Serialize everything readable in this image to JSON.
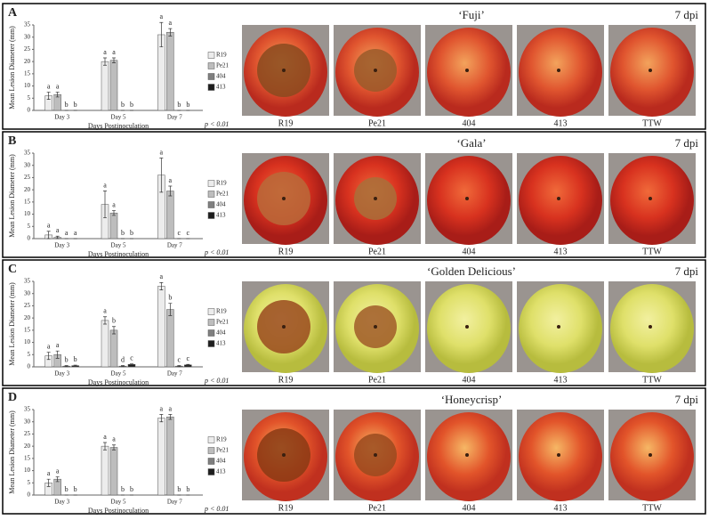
{
  "chart_data": [
    {
      "type": "bar",
      "panel": "A",
      "title": "‘Fuji’",
      "dpi": "7 dpi",
      "note": "p < 0.01",
      "ylabel": "Mean Lesion Diameter (mm)",
      "xlabel": "Days Postinoculation",
      "categories": [
        "Day 3",
        "Day 5",
        "Day 7"
      ],
      "ylim": [
        0,
        35
      ],
      "yticks": [
        0,
        5,
        10,
        15,
        20,
        25,
        30,
        35
      ],
      "photos": [
        "R19",
        "Pe21",
        "404",
        "413",
        "TTW"
      ],
      "series": [
        {
          "name": "R19",
          "color": "#ececec",
          "values": [
            6,
            20,
            31
          ],
          "errors": [
            1.5,
            1.5,
            5
          ],
          "letters": [
            "a",
            "a",
            "a"
          ]
        },
        {
          "name": "Pe21",
          "color": "#bdbdbd",
          "values": [
            6.5,
            20.5,
            32
          ],
          "errors": [
            1,
            1,
            1.5
          ],
          "letters": [
            "a",
            "a",
            "a"
          ]
        },
        {
          "name": "404",
          "color": "#7f7f7f",
          "values": [
            0,
            0,
            0
          ],
          "errors": [
            0,
            0,
            0
          ],
          "letters": [
            "b",
            "b",
            "b"
          ]
        },
        {
          "name": "413",
          "color": "#1e1e1e",
          "values": [
            0,
            0,
            0
          ],
          "errors": [
            0,
            0,
            0
          ],
          "letters": [
            "b",
            "b",
            "b"
          ]
        }
      ]
    },
    {
      "type": "bar",
      "panel": "B",
      "title": "‘Gala’",
      "dpi": "7 dpi",
      "note": "p < 0.01",
      "ylabel": "Mean Lesion Diameter (mm)",
      "xlabel": "Days Postinoculation",
      "categories": [
        "Day 3",
        "Day 5",
        "Day 7"
      ],
      "ylim": [
        0,
        35
      ],
      "yticks": [
        0,
        5,
        10,
        15,
        20,
        25,
        30,
        35
      ],
      "photos": [
        "R19",
        "Pe21",
        "404",
        "413",
        "TTW"
      ],
      "series": [
        {
          "name": "R19",
          "color": "#ececec",
          "values": [
            1.5,
            14,
            26
          ],
          "errors": [
            1.5,
            5.5,
            7
          ],
          "letters": [
            "a",
            "a",
            "a"
          ]
        },
        {
          "name": "Pe21",
          "color": "#bdbdbd",
          "values": [
            0.5,
            10.5,
            19.5
          ],
          "errors": [
            0.5,
            1,
            2
          ],
          "letters": [
            "a",
            "a",
            "a"
          ]
        },
        {
          "name": "404",
          "color": "#7f7f7f",
          "values": [
            0,
            0,
            0
          ],
          "errors": [
            0,
            0,
            0
          ],
          "letters": [
            "a",
            "b",
            "c"
          ]
        },
        {
          "name": "413",
          "color": "#1e1e1e",
          "values": [
            0,
            0,
            0
          ],
          "errors": [
            0,
            0,
            0
          ],
          "letters": [
            "a",
            "b",
            "c"
          ]
        }
      ]
    },
    {
      "type": "bar",
      "panel": "C",
      "title": "‘Golden Delicious’",
      "dpi": "7 dpi",
      "note": "p < 0.01",
      "ylabel": "Mean Lesion Diameter (mm)",
      "xlabel": "Days Postinoculation",
      "categories": [
        "Day 3",
        "Day 5",
        "Day 7"
      ],
      "ylim": [
        0,
        35
      ],
      "yticks": [
        0,
        5,
        10,
        15,
        20,
        25,
        30,
        35
      ],
      "photos": [
        "R19",
        "Pe21",
        "404",
        "413",
        "TTW"
      ],
      "series": [
        {
          "name": "R19",
          "color": "#ececec",
          "values": [
            4.5,
            19,
            33
          ],
          "errors": [
            1.5,
            1.5,
            1.5
          ],
          "letters": [
            "a",
            "a",
            "a"
          ]
        },
        {
          "name": "Pe21",
          "color": "#bdbdbd",
          "values": [
            5,
            15,
            23.5
          ],
          "errors": [
            1.5,
            1.5,
            2.5
          ],
          "letters": [
            "a",
            "b",
            "b"
          ]
        },
        {
          "name": "404",
          "color": "#7f7f7f",
          "values": [
            0.3,
            0.3,
            0.3
          ],
          "errors": [
            0.2,
            0.2,
            0.2
          ],
          "letters": [
            "b",
            "d",
            "c"
          ]
        },
        {
          "name": "413",
          "color": "#1e1e1e",
          "values": [
            0.5,
            1,
            0.8
          ],
          "errors": [
            0.2,
            0.2,
            0.2
          ],
          "letters": [
            "b",
            "c",
            "c"
          ]
        }
      ]
    },
    {
      "type": "bar",
      "panel": "D",
      "title": "‘Honeycrisp’",
      "dpi": "7 dpi",
      "note": "p < 0.01",
      "ylabel": "Mean Lesion Diameter (mm)",
      "xlabel": "Days Postinoculation",
      "categories": [
        "Day 3",
        "Day 5",
        "Day 7"
      ],
      "ylim": [
        0,
        35
      ],
      "yticks": [
        0,
        5,
        10,
        15,
        20,
        25,
        30,
        35
      ],
      "photos": [
        "R19",
        "Pe21",
        "404",
        "413",
        "TTW"
      ],
      "series": [
        {
          "name": "R19",
          "color": "#ececec",
          "values": [
            5,
            20,
            31.5
          ],
          "errors": [
            1.5,
            1.5,
            1.5
          ],
          "letters": [
            "a",
            "a",
            "a"
          ]
        },
        {
          "name": "Pe21",
          "color": "#bdbdbd",
          "values": [
            6.5,
            19.5,
            32
          ],
          "errors": [
            1,
            1,
            1
          ],
          "letters": [
            "a",
            "a",
            "a"
          ]
        },
        {
          "name": "404",
          "color": "#7f7f7f",
          "values": [
            0,
            0,
            0
          ],
          "errors": [
            0,
            0,
            0
          ],
          "letters": [
            "b",
            "b",
            "b"
          ]
        },
        {
          "name": "413",
          "color": "#1e1e1e",
          "values": [
            0,
            0,
            0
          ],
          "errors": [
            0,
            0,
            0
          ],
          "letters": [
            "b",
            "b",
            "b"
          ]
        }
      ]
    }
  ]
}
